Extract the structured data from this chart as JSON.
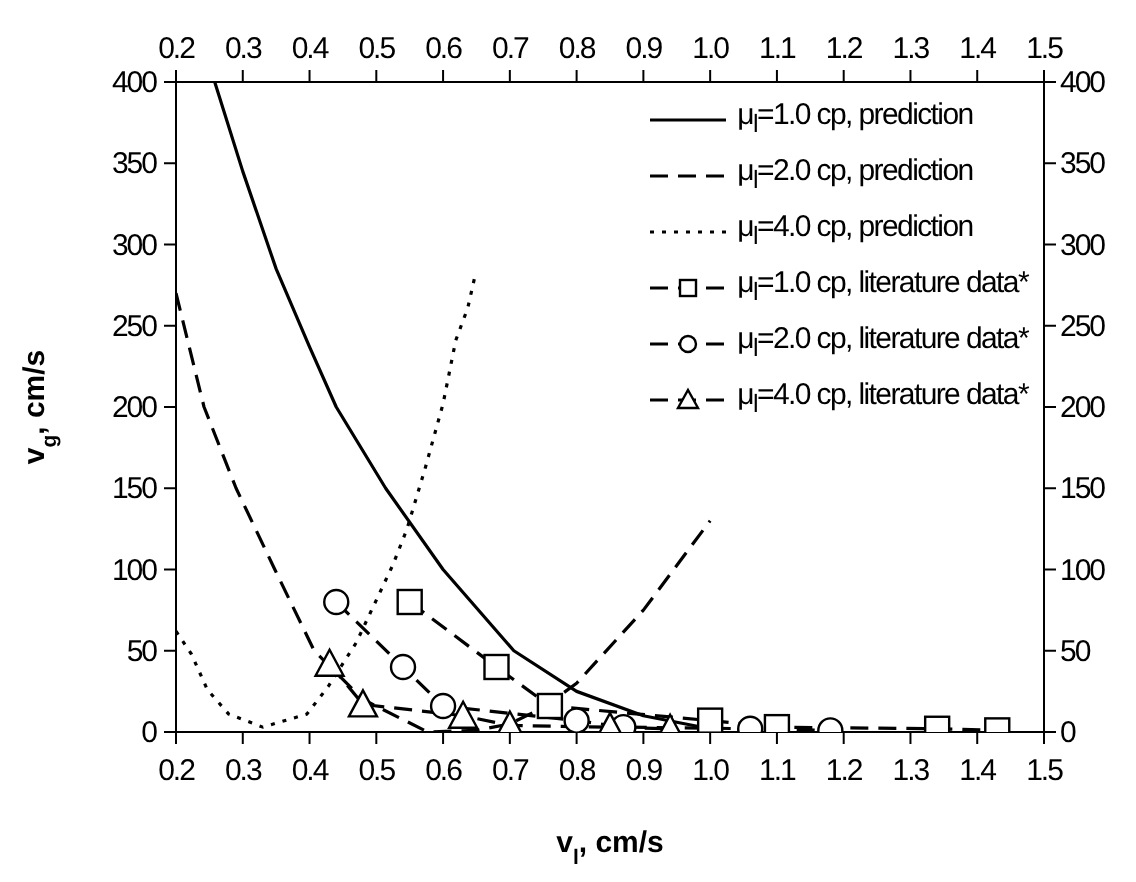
{
  "chart_data": {
    "type": "line",
    "xlabel": "v$_{l}$, cm/s",
    "ylabel": "v$_{g}$, cm/s",
    "xlim": [
      0.2,
      1.5
    ],
    "xticks": [
      0.2,
      0.3,
      0.4,
      0.5,
      0.6,
      0.7,
      0.8,
      0.9,
      {
        "value": 1,
        "label": "1.0"
      },
      1.1,
      1.2,
      1.3,
      1.4,
      1.5
    ],
    "x2lim": [
      0.2,
      1.5
    ],
    "x2ticks": [
      0.2,
      0.3,
      0.4,
      0.5,
      0.6,
      0.7,
      0.8,
      0.9,
      {
        "value": 1,
        "label": "1.0"
      },
      1.1,
      1.2,
      1.3,
      1.4,
      1.5
    ],
    "ylim": [
      0,
      400
    ],
    "yticks": [
      0,
      50,
      100,
      150,
      200,
      250,
      300,
      350,
      400
    ],
    "y2lim": [
      0,
      400
    ],
    "y2ticks": [
      0,
      50,
      100,
      150,
      200,
      250,
      300,
      350,
      400
    ],
    "legend": "top right",
    "series": [
      {
        "name": "μ$_{l}$=1.0 cp, prediction",
        "color": "#000000",
        "line_style": "solid",
        "marker": "none",
        "x": [
          0.258,
          0.3,
          0.35,
          0.4,
          0.44,
          0.514,
          0.6,
          0.706,
          0.8,
          0.9,
          1.0
        ],
        "values": [
          400,
          345,
          285,
          237,
          200,
          150,
          100,
          50,
          25,
          10,
          2
        ]
      },
      {
        "name": "μ$_{l}$=2.0 cp, prediction",
        "color": "#000000",
        "line_style": "dashed",
        "marker": "none",
        "x": [
          0.2,
          0.242,
          0.29,
          0.348,
          0.407,
          0.48,
          0.577,
          0.65,
          0.7,
          0.75,
          0.8,
          0.9,
          1.0
        ],
        "values": [
          270,
          200,
          150,
          100,
          50,
          20,
          0,
          1,
          5,
          15,
          30,
          75,
          130
        ]
      },
      {
        "name": "μ$_{l}$=4.0 cp, prediction",
        "color": "#000000",
        "line_style": "dotted",
        "marker": "none",
        "x": [
          0.2,
          0.223,
          0.247,
          0.279,
          0.33,
          0.396,
          0.428,
          0.47,
          0.525,
          0.546,
          0.573,
          0.6,
          0.619,
          0.637,
          0.648
        ],
        "values": [
          62,
          48,
          26,
          11,
          3,
          11,
          28,
          55,
          103,
          125,
          162,
          202,
          241,
          261,
          281
        ]
      },
      {
        "name": "μ$_{l}$=1.0 cp, literature data*",
        "color": "#000000",
        "line_style": "dashed",
        "marker": "square",
        "x": [
          0.55,
          0.68,
          0.76,
          1.0,
          1.1,
          1.34,
          1.43
        ],
        "values": [
          80,
          40,
          16,
          7,
          3,
          2,
          1
        ]
      },
      {
        "name": "μ$_{l}$=2.0 cp, literature data*",
        "color": "#000000",
        "line_style": "dashed",
        "marker": "circle",
        "x": [
          0.44,
          0.54,
          0.6,
          0.8,
          0.87,
          1.06,
          1.18
        ],
        "values": [
          80,
          40,
          16,
          7,
          3,
          2,
          1
        ]
      },
      {
        "name": "μ$_{l}$=4.0 cp, literature data*",
        "color": "#000000",
        "line_style": "dashed",
        "marker": "triangle",
        "x": [
          0.43,
          0.48,
          0.63,
          0.7,
          0.85,
          0.94
        ],
        "values": [
          42,
          17,
          10,
          4,
          3,
          2
        ]
      }
    ]
  }
}
